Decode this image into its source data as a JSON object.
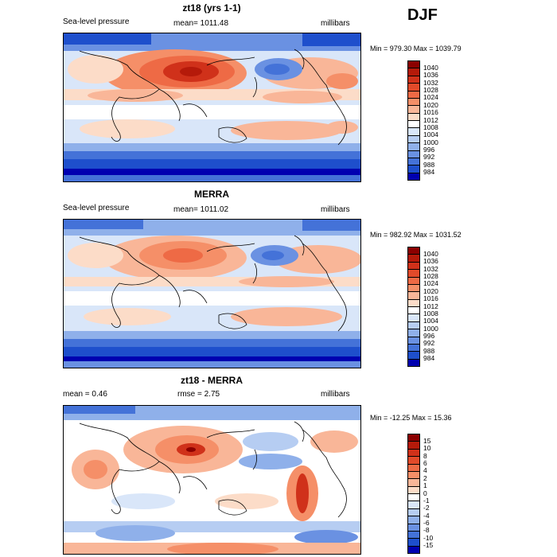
{
  "season": "DJF",
  "panels": [
    {
      "title": "zt18 (yrs 1-1)",
      "left": "Sea-level pressure",
      "center": "mean= 1011.48",
      "right": "millibars",
      "minmax": "Min = 979.30 Max = 1039.79"
    },
    {
      "title": "MERRA",
      "left": "Sea-level pressure",
      "center": "mean= 1011.02",
      "right": "millibars",
      "minmax": "Min = 982.92 Max = 1031.52"
    },
    {
      "title": "zt18 - MERRA",
      "left": "mean =    0.46",
      "center": "rmse =    2.75",
      "right": "millibars",
      "minmax": "Min = -12.25 Max =  15.36"
    }
  ],
  "colorbars": {
    "abs": {
      "labels": [
        "1040",
        "1036",
        "1032",
        "1028",
        "1024",
        "1020",
        "1016",
        "1012",
        "1008",
        "1004",
        "1000",
        "996",
        "992",
        "988",
        "984"
      ],
      "colors": [
        "#8b0000",
        "#b51a0a",
        "#d0311a",
        "#e24a2a",
        "#ee6a45",
        "#f58f68",
        "#f9b698",
        "#fcdcc8",
        "#ffffff",
        "#d9e6f9",
        "#b6cdf2",
        "#8fb0ea",
        "#6a91e2",
        "#4472d8",
        "#1e4fcc",
        "#0000b0"
      ]
    },
    "diff": {
      "labels": [
        "15",
        "10",
        "8",
        "6",
        "4",
        "2",
        "1",
        "0",
        "-1",
        "-2",
        "-4",
        "-6",
        "-8",
        "-10",
        "-15"
      ],
      "colors": [
        "#8b0000",
        "#b51a0a",
        "#d0311a",
        "#e24a2a",
        "#ee6a45",
        "#f58f68",
        "#f9b698",
        "#fcdcc8",
        "#ffffff",
        "#d9e6f9",
        "#b6cdf2",
        "#8fb0ea",
        "#6a91e2",
        "#4472d8",
        "#1e4fcc",
        "#0000b0"
      ]
    }
  }
}
